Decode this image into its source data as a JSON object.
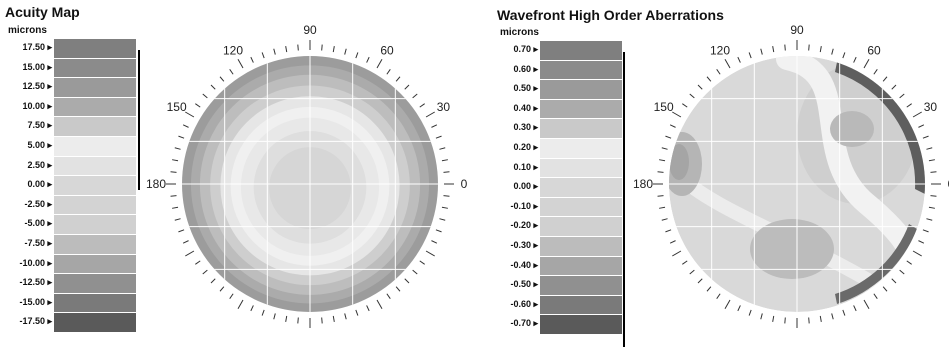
{
  "panels": [
    {
      "id": "acuity",
      "title": "Acuity Map",
      "units": "microns",
      "legend": [
        {
          "label": "17.50",
          "color": "#7f7f7f"
        },
        {
          "label": "15.00",
          "color": "#8b8b8b"
        },
        {
          "label": "12.50",
          "color": "#9a9a9a"
        },
        {
          "label": "10.00",
          "color": "#ababab"
        },
        {
          "label": "7.50",
          "color": "#c9c9c9"
        },
        {
          "label": "5.00",
          "color": "#ececec"
        },
        {
          "label": "2.50",
          "color": "#e2e2e2"
        },
        {
          "label": "0.00",
          "color": "#d7d7d7"
        },
        {
          "label": "-2.50",
          "color": "#d3d3d3"
        },
        {
          "label": "-5.00",
          "color": "#d0d0d0"
        },
        {
          "label": "-7.50",
          "color": "#bcbcbc"
        },
        {
          "label": "-10.00",
          "color": "#a6a6a6"
        },
        {
          "label": "-12.50",
          "color": "#909090"
        },
        {
          "label": "-15.00",
          "color": "#7a7a7a"
        },
        {
          "label": "-17.50",
          "color": "#5a5a5a"
        }
      ],
      "dial": {
        "labels": [
          "90",
          "120",
          "60",
          "150",
          "30",
          "180",
          "0"
        ]
      }
    },
    {
      "id": "wavefront",
      "title": "Wavefront High Order Aberrations",
      "units": "microns",
      "legend": [
        {
          "label": "0.70",
          "color": "#7f7f7f"
        },
        {
          "label": "0.60",
          "color": "#8b8b8b"
        },
        {
          "label": "0.50",
          "color": "#9a9a9a"
        },
        {
          "label": "0.40",
          "color": "#ababab"
        },
        {
          "label": "0.30",
          "color": "#c9c9c9"
        },
        {
          "label": "0.20",
          "color": "#ececec"
        },
        {
          "label": "0.10",
          "color": "#e2e2e2"
        },
        {
          "label": "0.00",
          "color": "#d7d7d7"
        },
        {
          "label": "-0.10",
          "color": "#d3d3d3"
        },
        {
          "label": "-0.20",
          "color": "#d0d0d0"
        },
        {
          "label": "-0.30",
          "color": "#bcbcbc"
        },
        {
          "label": "-0.40",
          "color": "#a6a6a6"
        },
        {
          "label": "-0.50",
          "color": "#909090"
        },
        {
          "label": "-0.60",
          "color": "#7a7a7a"
        },
        {
          "label": "-0.70",
          "color": "#5a5a5a"
        }
      ],
      "dial": {
        "labels": [
          "90",
          "120",
          "60",
          "150",
          "30",
          "180",
          "0"
        ]
      }
    }
  ],
  "colors": {
    "background": "#ffffff",
    "grid": "#ffffff",
    "tick": "#333333"
  }
}
